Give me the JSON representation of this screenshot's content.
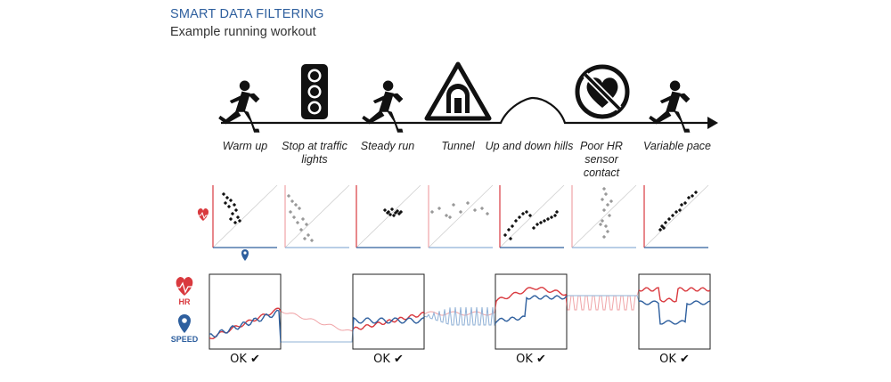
{
  "header": {
    "title": "SMART DATA FILTERING",
    "subtitle": "Example running workout"
  },
  "stages": [
    {
      "label": "Warm up",
      "icon": "runner-icon"
    },
    {
      "label": "Stop at traffic lights",
      "icon": "traffic-light-icon"
    },
    {
      "label": "Steady run",
      "icon": "runner-icon"
    },
    {
      "label": "Tunnel",
      "icon": "tunnel-warning-icon"
    },
    {
      "label": "Up and down hills",
      "icon": "hill-icon"
    },
    {
      "label": "Poor HR sensor contact",
      "icon": "no-heart-icon"
    },
    {
      "label": "Variable pace",
      "icon": "runner-icon"
    }
  ],
  "legend": {
    "hr_label": "HR",
    "speed_label": "SPEED",
    "hr_color": "#d9393e",
    "speed_color": "#2e5f9e"
  },
  "ok_labels": [
    "OK",
    "OK",
    "OK",
    "OK"
  ],
  "check_glyph": "✔",
  "colors": {
    "title": "#2e5f9e",
    "hr": "#d9393e",
    "speed": "#2e5f9e",
    "hr_faded": "#f0a3a6",
    "speed_faded": "#8fb0d6"
  }
}
